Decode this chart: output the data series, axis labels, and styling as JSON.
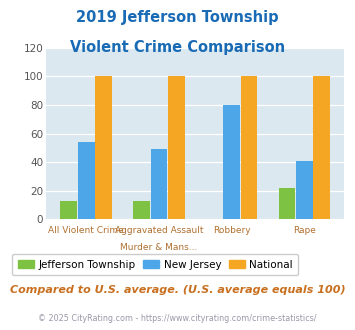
{
  "title_line1": "2019 Jefferson Township",
  "title_line2": "Violent Crime Comparison",
  "cat_labels_line1": [
    "All Violent Crime",
    "Aggravated Assault",
    "Robbery",
    "Rape"
  ],
  "cat_labels_line2": [
    "",
    "Murder & Mans...",
    "",
    ""
  ],
  "jefferson": [
    13,
    13,
    0,
    22
  ],
  "new_jersey": [
    54,
    49,
    80,
    41
  ],
  "national": [
    100,
    100,
    100,
    100
  ],
  "colors": {
    "jefferson": "#7dc242",
    "new_jersey": "#4da6e8",
    "national": "#f5a623"
  },
  "ylim": [
    0,
    120
  ],
  "yticks": [
    0,
    20,
    40,
    60,
    80,
    100,
    120
  ],
  "background_color": "#dce8ef",
  "title_color": "#1a6bb5",
  "legend_labels": [
    "Jefferson Township",
    "New Jersey",
    "National"
  ],
  "footnote1": "Compared to U.S. average. (U.S. average equals 100)",
  "footnote2": "© 2025 CityRating.com - https://www.cityrating.com/crime-statistics/",
  "footnote1_color": "#c87020",
  "footnote2_color": "#9999aa",
  "xlabel_color": "#b07030",
  "ylabel_color": "#555555"
}
